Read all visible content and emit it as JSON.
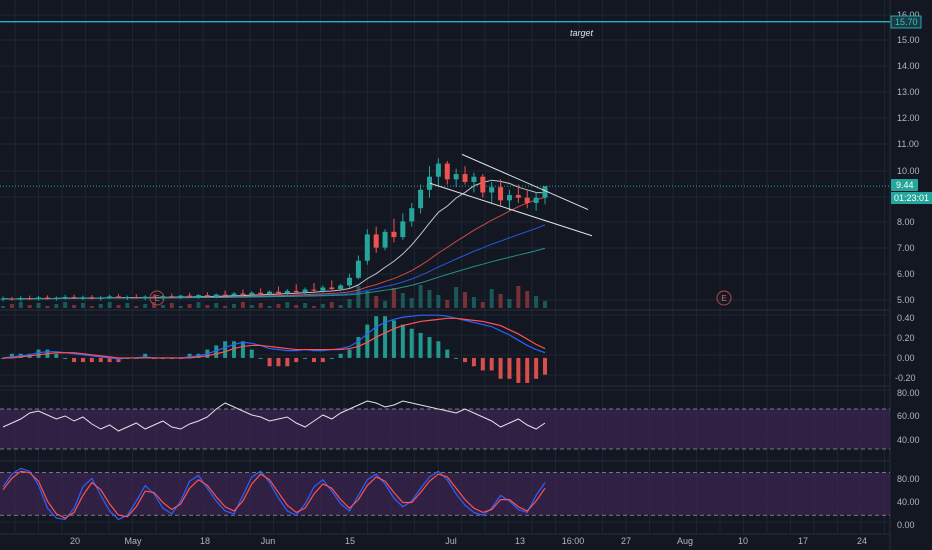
{
  "colors": {
    "background": "#131722",
    "grid": "#1e2433",
    "axis_text": "#b2b5be",
    "candle_up": "#26a69a",
    "candle_down": "#ef5350",
    "target_line": "#26c6da",
    "price_tag": "#26a69a",
    "macd_line": "#2962ff",
    "signal_line": "#ff5252",
    "hist_up": "#26a69a",
    "hist_down": "#ef5350",
    "rsi_line": "#e0e3eb",
    "band_fill": "#3b2450",
    "event_marker": "#b04a4a"
  },
  "price_axis": {
    "ticks": [
      "16.00",
      "15.00",
      "14.00",
      "13.00",
      "12.00",
      "11.00",
      "10.00",
      "8.00",
      "7.00",
      "6.00",
      "5.00"
    ],
    "target_value": "15.70",
    "current_price": "9.44",
    "countdown": "01:23:01"
  },
  "annotations": {
    "target": "target"
  },
  "earnings_marker": "E",
  "macd_axis": {
    "ticks": [
      "0.40",
      "0.20",
      "0.00",
      "-0.20"
    ]
  },
  "rsi_axis": {
    "ticks": [
      "80.00",
      "60.00",
      "40.00"
    ]
  },
  "stoch_axis": {
    "ticks": [
      "80.00",
      "40.00",
      "0.00"
    ]
  },
  "time_axis": {
    "labels": [
      "20",
      "May",
      "18",
      "Jun",
      "15",
      "Jul",
      "13",
      "16:00",
      "27",
      "Aug",
      "10",
      "17",
      "24"
    ]
  },
  "chart_data": {
    "type": "candlestick",
    "price_levels": {
      "target": 15.7,
      "last": 9.44
    },
    "y_range": [
      4.8,
      16.3
    ],
    "candles_ohlc": [
      [
        5.14,
        5.24,
        5.05,
        5.16
      ],
      [
        5.16,
        5.22,
        5.08,
        5.12
      ],
      [
        5.12,
        5.25,
        5.06,
        5.18
      ],
      [
        5.18,
        5.27,
        5.1,
        5.15
      ],
      [
        5.15,
        5.26,
        5.09,
        5.2
      ],
      [
        5.2,
        5.28,
        5.12,
        5.14
      ],
      [
        5.14,
        5.24,
        5.08,
        5.19
      ],
      [
        5.19,
        5.3,
        5.12,
        5.22
      ],
      [
        5.22,
        5.31,
        5.14,
        5.17
      ],
      [
        5.17,
        5.27,
        5.1,
        5.21
      ],
      [
        5.21,
        5.29,
        5.13,
        5.15
      ],
      [
        5.15,
        5.25,
        5.08,
        5.2
      ],
      [
        5.2,
        5.3,
        5.13,
        5.24
      ],
      [
        5.24,
        5.33,
        5.16,
        5.18
      ],
      [
        5.18,
        5.27,
        5.11,
        5.22
      ],
      [
        5.22,
        5.32,
        5.15,
        5.17
      ],
      [
        5.17,
        5.28,
        5.1,
        5.23
      ],
      [
        5.23,
        5.33,
        5.16,
        5.19
      ],
      [
        5.19,
        5.29,
        5.12,
        5.25
      ],
      [
        5.25,
        5.35,
        5.17,
        5.21
      ],
      [
        5.21,
        5.3,
        5.14,
        5.27
      ],
      [
        5.27,
        5.38,
        5.19,
        5.22
      ],
      [
        5.22,
        5.33,
        5.15,
        5.29
      ],
      [
        5.29,
        5.4,
        5.21,
        5.24
      ],
      [
        5.24,
        5.35,
        5.17,
        5.31
      ],
      [
        5.31,
        5.46,
        5.22,
        5.27
      ],
      [
        5.27,
        5.41,
        5.2,
        5.35
      ],
      [
        5.35,
        5.5,
        5.26,
        5.3
      ],
      [
        5.3,
        5.44,
        5.23,
        5.38
      ],
      [
        5.38,
        5.55,
        5.29,
        5.33
      ],
      [
        5.33,
        5.47,
        5.25,
        5.42
      ],
      [
        5.42,
        5.62,
        5.33,
        5.36
      ],
      [
        5.36,
        5.52,
        5.28,
        5.45
      ],
      [
        5.45,
        5.7,
        5.36,
        5.4
      ],
      [
        5.4,
        5.58,
        5.31,
        5.5
      ],
      [
        5.5,
        5.75,
        5.4,
        5.46
      ],
      [
        5.46,
        5.66,
        5.37,
        5.58
      ],
      [
        5.58,
        5.85,
        5.48,
        5.52
      ],
      [
        5.52,
        5.72,
        5.43,
        5.66
      ],
      [
        5.66,
        6.1,
        5.58,
        5.95
      ],
      [
        5.95,
        6.8,
        5.9,
        6.6
      ],
      [
        6.6,
        7.8,
        6.45,
        7.6
      ],
      [
        7.6,
        7.9,
        6.9,
        7.1
      ],
      [
        7.1,
        7.8,
        7.0,
        7.7
      ],
      [
        7.7,
        8.2,
        7.3,
        7.5
      ],
      [
        7.5,
        8.4,
        7.4,
        8.1
      ],
      [
        8.1,
        8.8,
        7.9,
        8.6
      ],
      [
        8.6,
        9.5,
        8.4,
        9.3
      ],
      [
        9.3,
        10.2,
        9.0,
        9.8
      ],
      [
        9.8,
        10.5,
        9.4,
        10.3
      ],
      [
        10.3,
        10.4,
        9.5,
        9.7
      ],
      [
        9.7,
        10.1,
        9.4,
        9.9
      ],
      [
        9.9,
        10.2,
        9.5,
        9.6
      ],
      [
        9.6,
        9.95,
        9.2,
        9.8
      ],
      [
        9.8,
        9.9,
        9.0,
        9.2
      ],
      [
        9.2,
        9.6,
        8.8,
        9.4
      ],
      [
        9.4,
        9.7,
        8.7,
        8.9
      ],
      [
        8.9,
        9.3,
        8.5,
        9.1
      ],
      [
        9.1,
        9.5,
        8.8,
        9.0
      ],
      [
        9.0,
        9.3,
        8.6,
        8.8
      ],
      [
        8.8,
        9.2,
        8.5,
        9.0
      ],
      [
        9.0,
        9.4,
        8.75,
        9.44
      ]
    ],
    "annotation_labels": [
      "target"
    ],
    "event_markers": [
      "E",
      "E"
    ],
    "indicators": {
      "macd": {
        "y_range": [
          -0.25,
          0.45
        ],
        "macd": [
          0.0,
          0.01,
          0.02,
          0.03,
          0.05,
          0.06,
          0.06,
          0.05,
          0.04,
          0.03,
          0.02,
          0.01,
          0.0,
          -0.01,
          0.0,
          0.0,
          0.01,
          0.0,
          0.0,
          0.0,
          0.0,
          0.01,
          0.02,
          0.04,
          0.07,
          0.1,
          0.13,
          0.15,
          0.14,
          0.12,
          0.09,
          0.08,
          0.07,
          0.07,
          0.08,
          0.07,
          0.07,
          0.08,
          0.09,
          0.11,
          0.16,
          0.23,
          0.3,
          0.34,
          0.37,
          0.39,
          0.4,
          0.41,
          0.41,
          0.41,
          0.4,
          0.38,
          0.36,
          0.34,
          0.32,
          0.3,
          0.26,
          0.22,
          0.17,
          0.12,
          0.08,
          0.05
        ],
        "signal": [
          0.0,
          0.0,
          0.01,
          0.02,
          0.03,
          0.04,
          0.05,
          0.05,
          0.05,
          0.04,
          0.03,
          0.02,
          0.01,
          0.0,
          0.0,
          0.0,
          0.0,
          0.0,
          0.0,
          0.0,
          0.0,
          0.0,
          0.01,
          0.02,
          0.04,
          0.06,
          0.09,
          0.11,
          0.12,
          0.12,
          0.11,
          0.1,
          0.09,
          0.08,
          0.08,
          0.08,
          0.08,
          0.08,
          0.08,
          0.09,
          0.11,
          0.15,
          0.2,
          0.24,
          0.28,
          0.31,
          0.33,
          0.35,
          0.36,
          0.37,
          0.38,
          0.38,
          0.37,
          0.36,
          0.35,
          0.33,
          0.31,
          0.27,
          0.23,
          0.18,
          0.13,
          0.09
        ]
      },
      "rsi": {
        "y_range": [
          20,
          92
        ],
        "bands": [
          70,
          30
        ],
        "values": [
          52,
          56,
          60,
          66,
          68,
          64,
          60,
          63,
          58,
          62,
          55,
          50,
          54,
          48,
          52,
          56,
          50,
          54,
          58,
          52,
          50,
          55,
          58,
          62,
          70,
          76,
          72,
          68,
          64,
          62,
          58,
          60,
          62,
          56,
          52,
          58,
          64,
          60,
          66,
          70,
          74,
          78,
          76,
          72,
          74,
          78,
          76,
          74,
          72,
          70,
          68,
          66,
          70,
          66,
          62,
          58,
          52,
          56,
          60,
          54,
          50,
          56
        ]
      },
      "stochastic": {
        "y_range": [
          -5,
          95
        ],
        "bands": [
          80,
          20
        ],
        "k": [
          60,
          78,
          86,
          82,
          62,
          30,
          16,
          14,
          30,
          60,
          72,
          48,
          26,
          14,
          20,
          40,
          62,
          50,
          30,
          22,
          40,
          68,
          76,
          58,
          40,
          26,
          22,
          48,
          74,
          82,
          66,
          44,
          26,
          20,
          36,
          60,
          70,
          54,
          36,
          26,
          48,
          70,
          78,
          64,
          44,
          32,
          40,
          58,
          74,
          82,
          70,
          50,
          34,
          24,
          20,
          30,
          48,
          40,
          28,
          24,
          48,
          66
        ],
        "d": [
          56,
          72,
          82,
          80,
          68,
          40,
          22,
          16,
          24,
          48,
          66,
          56,
          36,
          20,
          18,
          32,
          54,
          52,
          38,
          28,
          36,
          58,
          70,
          62,
          46,
          32,
          26,
          40,
          64,
          78,
          70,
          52,
          34,
          24,
          30,
          50,
          64,
          58,
          42,
          30,
          42,
          62,
          74,
          68,
          52,
          38,
          38,
          52,
          68,
          78,
          74,
          58,
          42,
          30,
          24,
          28,
          42,
          42,
          32,
          26,
          40,
          58
        ]
      }
    }
  }
}
